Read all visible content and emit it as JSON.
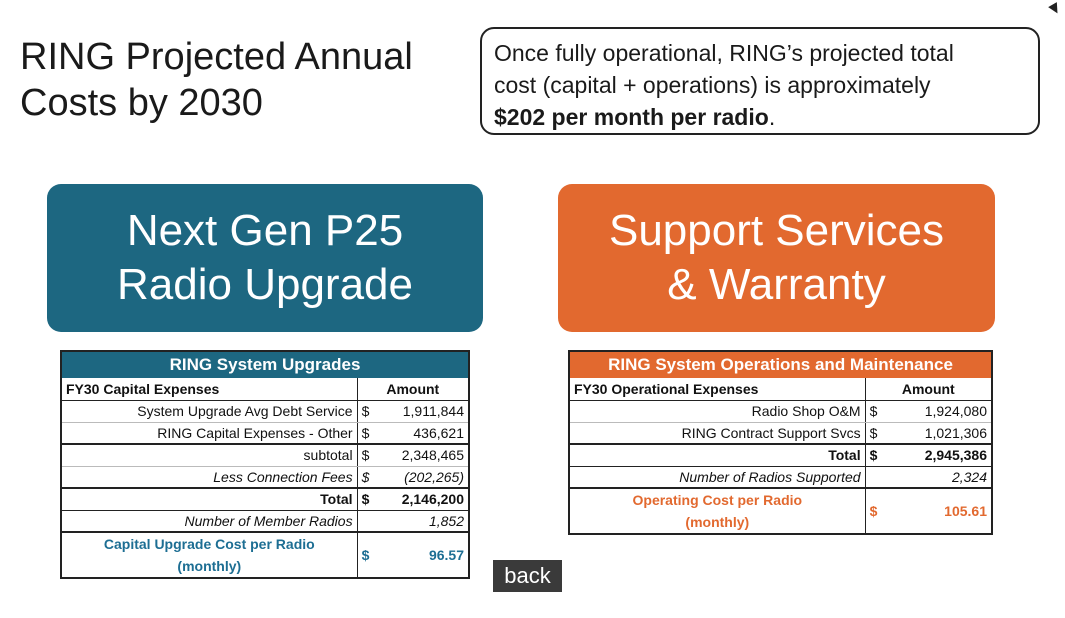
{
  "title_line1": "RING Projected Annual",
  "title_line2": "Costs by 2030",
  "callout": {
    "line1": "Once fully operational, RING’s  projected total",
    "line2": "cost (capital + operations) is approximately",
    "bold_text": "$202 per month per radio",
    "suffix": "."
  },
  "banner_left": {
    "line1": "Next Gen P25",
    "line2": "Radio Upgrade",
    "color": "#1d6781"
  },
  "banner_right": {
    "line1": "Support Services",
    "line2": "& Warranty",
    "color": "#e2692f"
  },
  "table_left": {
    "title": "RING System Upgrades",
    "col_label": "FY30 Capital Expenses",
    "col_amount": "Amount",
    "rows": [
      {
        "label": "System Upgrade Avg Debt Service",
        "cur": "$",
        "value": "1,911,844"
      },
      {
        "label": "RING Capital Expenses - Other",
        "cur": "$",
        "value": "436,621"
      },
      {
        "label": "subtotal",
        "cur": "$",
        "value": "2,348,465"
      },
      {
        "label": "Less Connection Fees",
        "cur": "$",
        "value": "(202,265)"
      }
    ],
    "total": {
      "label": "Total",
      "cur": "$",
      "value": "2,146,200"
    },
    "radios": {
      "label": "Number of Member Radios",
      "value": "1,852"
    },
    "cost": {
      "label_line1": "Capital Upgrade Cost per Radio",
      "label_line2": "(monthly)",
      "cur": "$",
      "value": "96.57"
    }
  },
  "table_right": {
    "title": "RING System Operations and Maintenance",
    "col_label": "FY30 Operational Expenses",
    "col_amount": "Amount",
    "rows": [
      {
        "label": "Radio Shop O&M",
        "cur": "$",
        "value": "1,924,080"
      },
      {
        "label": "RING Contract Support Svcs",
        "cur": "$",
        "value": "1,021,306"
      }
    ],
    "total": {
      "label": "Total",
      "cur": "$",
      "value": "2,945,386"
    },
    "radios": {
      "label": "Number of Radios Supported",
      "value": "2,324"
    },
    "cost": {
      "label_line1": "Operating Cost per Radio",
      "label_line2": "(monthly)",
      "cur": "$",
      "value": "105.61"
    }
  },
  "back_label": "back"
}
